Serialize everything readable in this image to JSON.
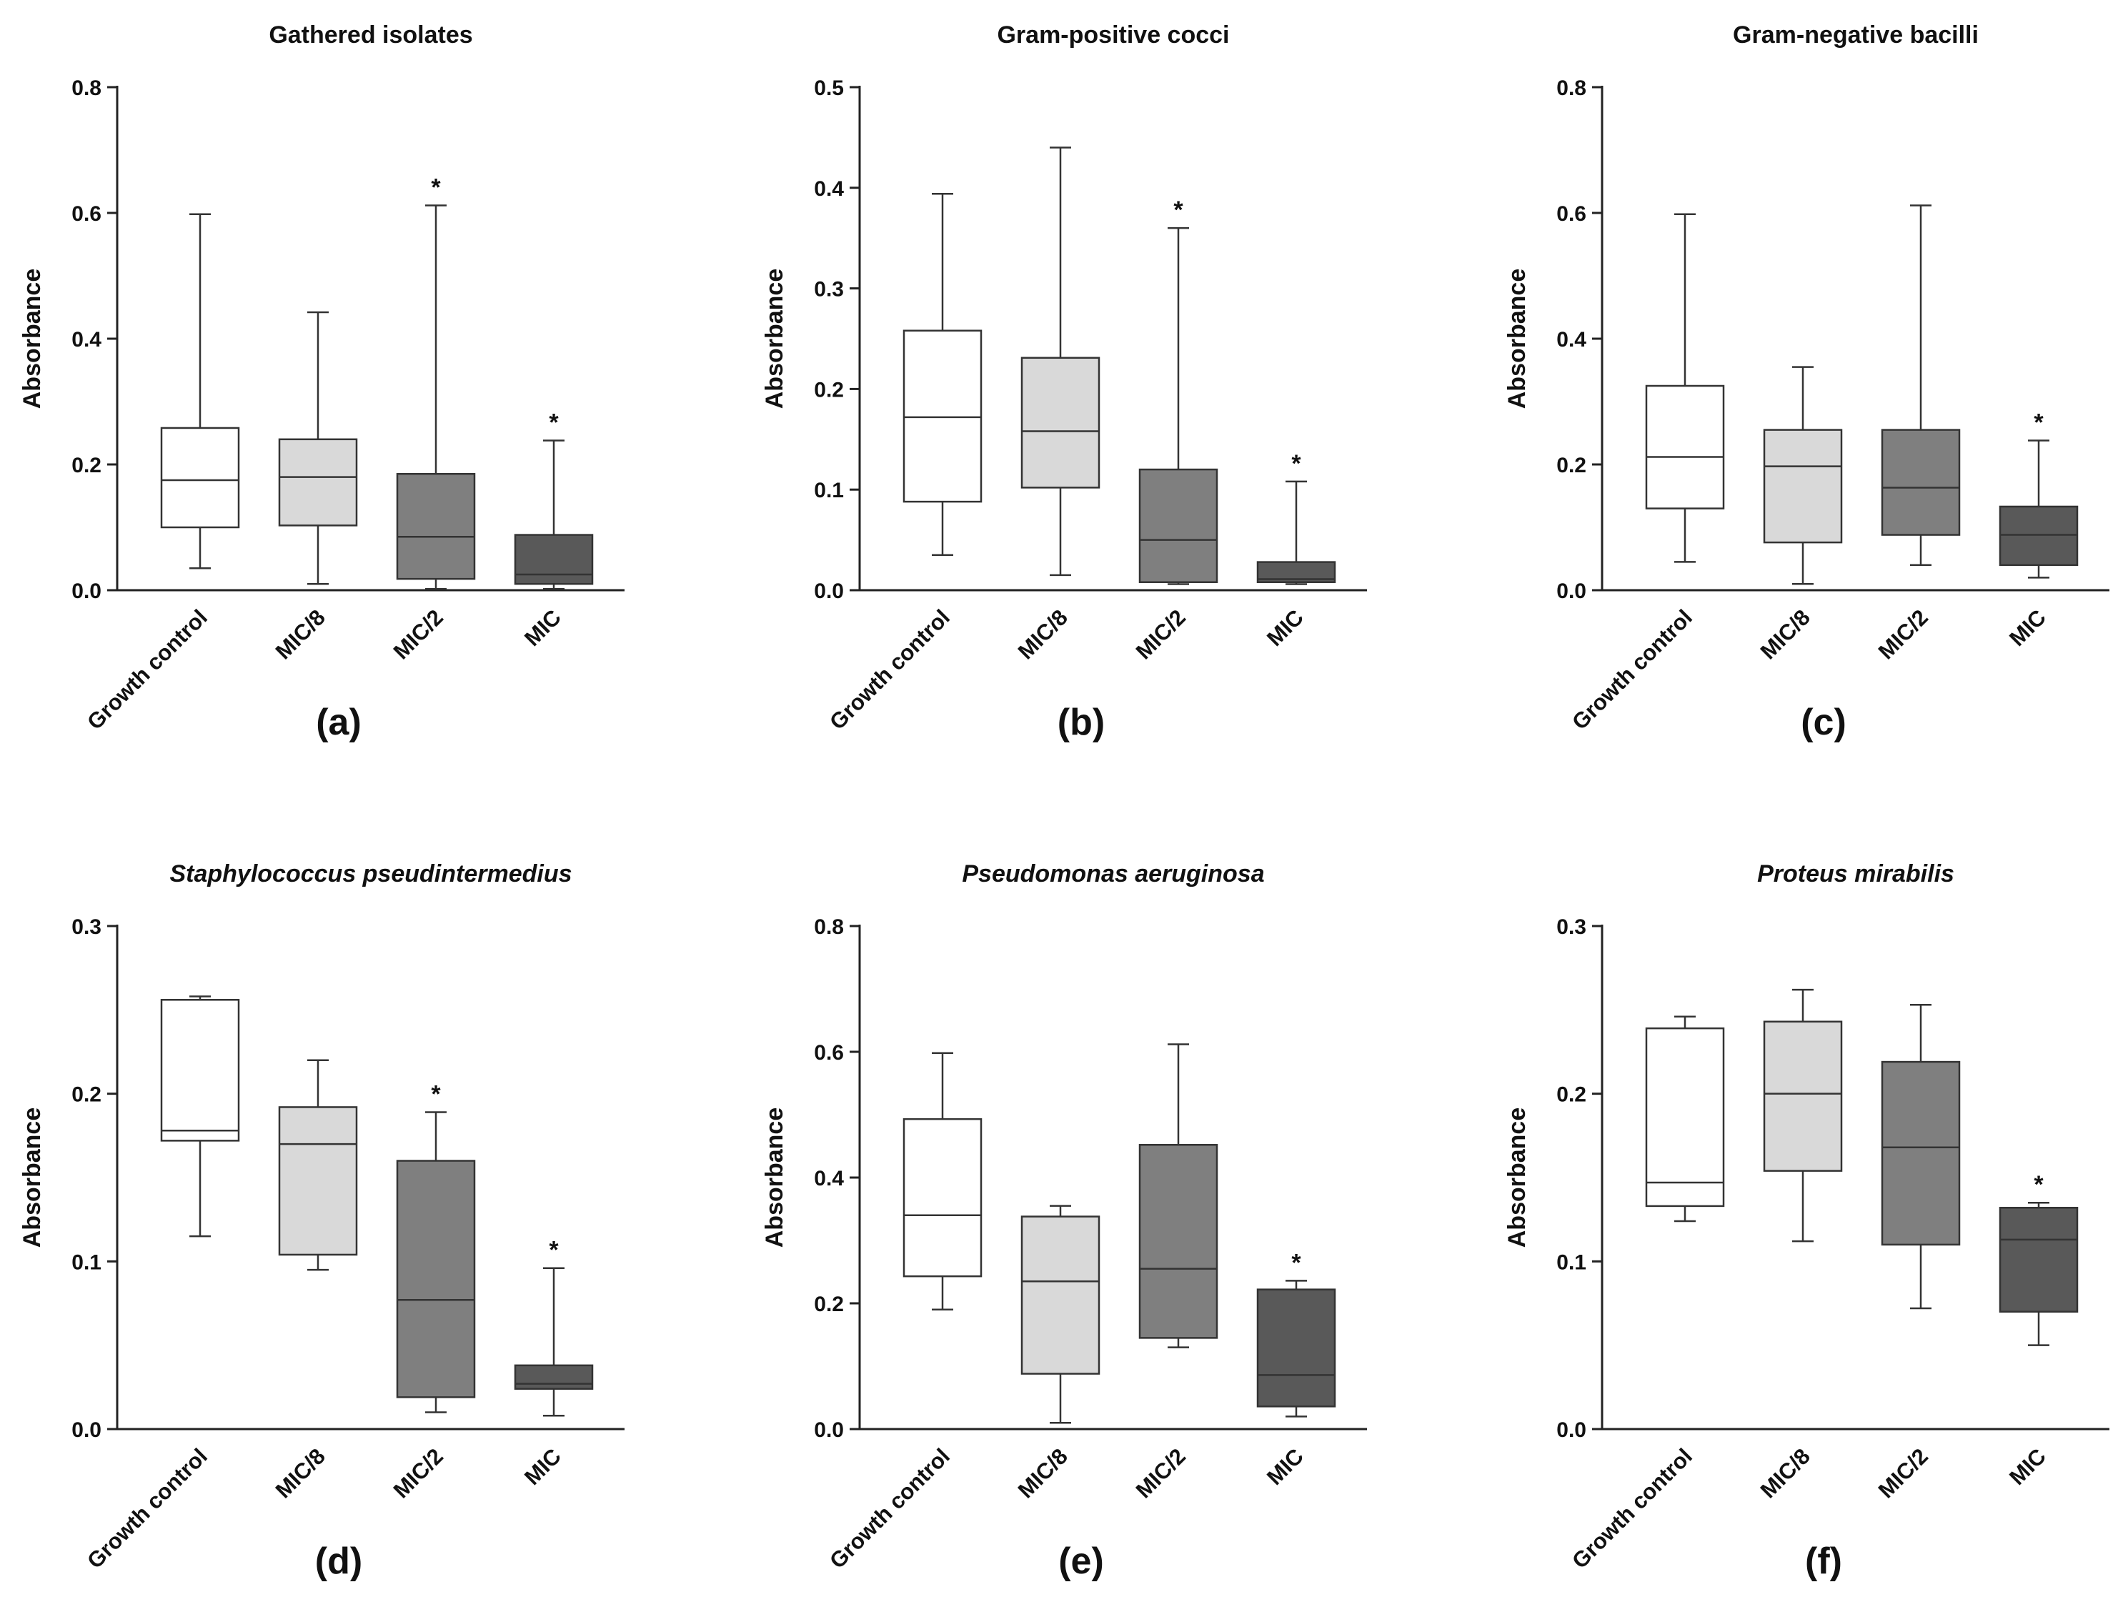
{
  "chart_data": [
    {
      "type": "boxplot",
      "panel_label": "(a)",
      "title": "Gathered isolates",
      "title_italic": false,
      "ylabel": "Absorbance",
      "ylim": [
        0,
        0.8
      ],
      "yticks": [
        0.0,
        0.2,
        0.4,
        0.6,
        0.8
      ],
      "tick_labels": [
        "0.0",
        "0.2",
        "0.4",
        "0.6",
        "0.8"
      ],
      "categories": [
        "Growth control",
        "MIC/8",
        "MIC/2",
        "MIC"
      ],
      "boxes": [
        {
          "min": 0.035,
          "q1": 0.1,
          "median": 0.175,
          "q3": 0.258,
          "max": 0.598,
          "marker": "",
          "color": "#ffffff"
        },
        {
          "min": 0.01,
          "q1": 0.103,
          "median": 0.18,
          "q3": 0.24,
          "max": 0.442,
          "marker": "",
          "color": "#d9d9d9"
        },
        {
          "min": 0.002,
          "q1": 0.018,
          "median": 0.085,
          "q3": 0.185,
          "max": 0.612,
          "marker": "*",
          "color": "#7f7f7f"
        },
        {
          "min": 0.002,
          "q1": 0.01,
          "median": 0.025,
          "q3": 0.088,
          "max": 0.238,
          "marker": "*",
          "color": "#595959"
        }
      ]
    },
    {
      "type": "boxplot",
      "panel_label": "(b)",
      "title": "Gram-positive cocci",
      "title_italic": false,
      "ylabel": "Absorbance",
      "ylim": [
        0,
        0.5
      ],
      "yticks": [
        0.0,
        0.1,
        0.2,
        0.3,
        0.4,
        0.5
      ],
      "tick_labels": [
        "0.0",
        "0.1",
        "0.2",
        "0.3",
        "0.4",
        "0.5"
      ],
      "categories": [
        "Growth control",
        "MIC/8",
        "MIC/2",
        "MIC"
      ],
      "boxes": [
        {
          "min": 0.035,
          "q1": 0.088,
          "median": 0.172,
          "q3": 0.258,
          "max": 0.394,
          "marker": "",
          "color": "#ffffff"
        },
        {
          "min": 0.015,
          "q1": 0.102,
          "median": 0.158,
          "q3": 0.231,
          "max": 0.44,
          "marker": "",
          "color": "#d9d9d9"
        },
        {
          "min": 0.006,
          "q1": 0.008,
          "median": 0.05,
          "q3": 0.12,
          "max": 0.36,
          "marker": "*",
          "color": "#7f7f7f"
        },
        {
          "min": 0.006,
          "q1": 0.008,
          "median": 0.011,
          "q3": 0.028,
          "max": 0.108,
          "marker": "*",
          "color": "#595959"
        }
      ]
    },
    {
      "type": "boxplot",
      "panel_label": "(c)",
      "title": "Gram-negative bacilli",
      "title_italic": false,
      "ylabel": "Absorbance",
      "ylim": [
        0,
        0.8
      ],
      "yticks": [
        0.0,
        0.2,
        0.4,
        0.6,
        0.8
      ],
      "tick_labels": [
        "0.0",
        "0.2",
        "0.4",
        "0.6",
        "0.8"
      ],
      "categories": [
        "Growth control",
        "MIC/8",
        "MIC/2",
        "MIC"
      ],
      "boxes": [
        {
          "min": 0.045,
          "q1": 0.13,
          "median": 0.212,
          "q3": 0.325,
          "max": 0.598,
          "marker": "",
          "color": "#ffffff"
        },
        {
          "min": 0.01,
          "q1": 0.076,
          "median": 0.197,
          "q3": 0.255,
          "max": 0.355,
          "marker": "",
          "color": "#d9d9d9"
        },
        {
          "min": 0.04,
          "q1": 0.088,
          "median": 0.163,
          "q3": 0.255,
          "max": 0.612,
          "marker": "",
          "color": "#7f7f7f"
        },
        {
          "min": 0.02,
          "q1": 0.04,
          "median": 0.088,
          "q3": 0.133,
          "max": 0.238,
          "marker": "*",
          "color": "#595959"
        }
      ]
    },
    {
      "type": "boxplot",
      "panel_label": "(d)",
      "title": "Staphylococcus pseudintermedius",
      "title_italic": true,
      "ylabel": "Absorbance",
      "ylim": [
        0,
        0.3
      ],
      "yticks": [
        0.0,
        0.1,
        0.2,
        0.3
      ],
      "tick_labels": [
        "0.0",
        "0.1",
        "0.2",
        "0.3"
      ],
      "categories": [
        "Growth control",
        "MIC/8",
        "MIC/2",
        "MIC"
      ],
      "boxes": [
        {
          "min": 0.115,
          "q1": 0.172,
          "median": 0.178,
          "q3": 0.256,
          "max": 0.258,
          "marker": "",
          "color": "#ffffff"
        },
        {
          "min": 0.095,
          "q1": 0.104,
          "median": 0.17,
          "q3": 0.192,
          "max": 0.22,
          "marker": "",
          "color": "#d9d9d9"
        },
        {
          "min": 0.01,
          "q1": 0.019,
          "median": 0.077,
          "q3": 0.16,
          "max": 0.189,
          "marker": "*",
          "color": "#7f7f7f"
        },
        {
          "min": 0.008,
          "q1": 0.024,
          "median": 0.027,
          "q3": 0.038,
          "max": 0.096,
          "marker": "*",
          "color": "#595959"
        }
      ]
    },
    {
      "type": "boxplot",
      "panel_label": "(e)",
      "title": "Pseudomonas aeruginosa",
      "title_italic": true,
      "ylabel": "Absorbance",
      "ylim": [
        0,
        0.8
      ],
      "yticks": [
        0.0,
        0.2,
        0.4,
        0.6,
        0.8
      ],
      "tick_labels": [
        "0.0",
        "0.2",
        "0.4",
        "0.6",
        "0.8"
      ],
      "categories": [
        "Growth control",
        "MIC/8",
        "MIC/2",
        "MIC"
      ],
      "boxes": [
        {
          "min": 0.19,
          "q1": 0.243,
          "median": 0.34,
          "q3": 0.493,
          "max": 0.598,
          "marker": "",
          "color": "#ffffff"
        },
        {
          "min": 0.01,
          "q1": 0.088,
          "median": 0.235,
          "q3": 0.338,
          "max": 0.355,
          "marker": "",
          "color": "#d9d9d9"
        },
        {
          "min": 0.13,
          "q1": 0.145,
          "median": 0.255,
          "q3": 0.452,
          "max": 0.612,
          "marker": "",
          "color": "#7f7f7f"
        },
        {
          "min": 0.02,
          "q1": 0.036,
          "median": 0.086,
          "q3": 0.222,
          "max": 0.236,
          "marker": "*",
          "color": "#595959"
        }
      ]
    },
    {
      "type": "boxplot",
      "panel_label": "(f)",
      "title": "Proteus mirabilis",
      "title_italic": true,
      "ylabel": "Absorbance",
      "ylim": [
        0,
        0.3
      ],
      "yticks": [
        0.0,
        0.1,
        0.2,
        0.3
      ],
      "tick_labels": [
        "0.0",
        "0.1",
        "0.2",
        "0.3"
      ],
      "categories": [
        "Growth control",
        "MIC/8",
        "MIC/2",
        "MIC"
      ],
      "boxes": [
        {
          "min": 0.124,
          "q1": 0.133,
          "median": 0.147,
          "q3": 0.239,
          "max": 0.246,
          "marker": "",
          "color": "#ffffff"
        },
        {
          "min": 0.112,
          "q1": 0.154,
          "median": 0.2,
          "q3": 0.243,
          "max": 0.262,
          "marker": "",
          "color": "#d9d9d9"
        },
        {
          "min": 0.072,
          "q1": 0.11,
          "median": 0.168,
          "q3": 0.219,
          "max": 0.253,
          "marker": "",
          "color": "#7f7f7f"
        },
        {
          "min": 0.05,
          "q1": 0.07,
          "median": 0.113,
          "q3": 0.132,
          "max": 0.135,
          "marker": "*",
          "color": "#595959"
        }
      ]
    }
  ]
}
